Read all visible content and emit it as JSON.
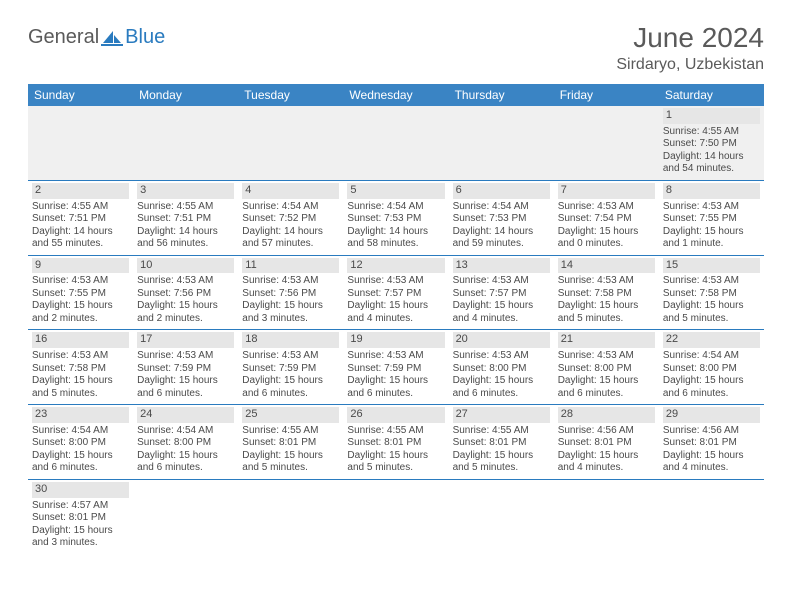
{
  "logo": {
    "text_gray": "General",
    "text_blue": "Blue"
  },
  "title": "June 2024",
  "location": "Sirdaryo, Uzbekistan",
  "colors": {
    "header_bg": "#3a84c4",
    "header_text": "#ffffff",
    "border": "#2a7bbf",
    "daynum_bg": "#e6e6e6",
    "text": "#4a4a4a",
    "title_text": "#5a5a5a",
    "page_bg": "#ffffff"
  },
  "days_of_week": [
    "Sunday",
    "Monday",
    "Tuesday",
    "Wednesday",
    "Thursday",
    "Friday",
    "Saturday"
  ],
  "weeks": [
    [
      null,
      null,
      null,
      null,
      null,
      null,
      {
        "n": "1",
        "sr": "Sunrise: 4:55 AM",
        "ss": "Sunset: 7:50 PM",
        "dl": "Daylight: 14 hours and 54 minutes."
      }
    ],
    [
      {
        "n": "2",
        "sr": "Sunrise: 4:55 AM",
        "ss": "Sunset: 7:51 PM",
        "dl": "Daylight: 14 hours and 55 minutes."
      },
      {
        "n": "3",
        "sr": "Sunrise: 4:55 AM",
        "ss": "Sunset: 7:51 PM",
        "dl": "Daylight: 14 hours and 56 minutes."
      },
      {
        "n": "4",
        "sr": "Sunrise: 4:54 AM",
        "ss": "Sunset: 7:52 PM",
        "dl": "Daylight: 14 hours and 57 minutes."
      },
      {
        "n": "5",
        "sr": "Sunrise: 4:54 AM",
        "ss": "Sunset: 7:53 PM",
        "dl": "Daylight: 14 hours and 58 minutes."
      },
      {
        "n": "6",
        "sr": "Sunrise: 4:54 AM",
        "ss": "Sunset: 7:53 PM",
        "dl": "Daylight: 14 hours and 59 minutes."
      },
      {
        "n": "7",
        "sr": "Sunrise: 4:53 AM",
        "ss": "Sunset: 7:54 PM",
        "dl": "Daylight: 15 hours and 0 minutes."
      },
      {
        "n": "8",
        "sr": "Sunrise: 4:53 AM",
        "ss": "Sunset: 7:55 PM",
        "dl": "Daylight: 15 hours and 1 minute."
      }
    ],
    [
      {
        "n": "9",
        "sr": "Sunrise: 4:53 AM",
        "ss": "Sunset: 7:55 PM",
        "dl": "Daylight: 15 hours and 2 minutes."
      },
      {
        "n": "10",
        "sr": "Sunrise: 4:53 AM",
        "ss": "Sunset: 7:56 PM",
        "dl": "Daylight: 15 hours and 2 minutes."
      },
      {
        "n": "11",
        "sr": "Sunrise: 4:53 AM",
        "ss": "Sunset: 7:56 PM",
        "dl": "Daylight: 15 hours and 3 minutes."
      },
      {
        "n": "12",
        "sr": "Sunrise: 4:53 AM",
        "ss": "Sunset: 7:57 PM",
        "dl": "Daylight: 15 hours and 4 minutes."
      },
      {
        "n": "13",
        "sr": "Sunrise: 4:53 AM",
        "ss": "Sunset: 7:57 PM",
        "dl": "Daylight: 15 hours and 4 minutes."
      },
      {
        "n": "14",
        "sr": "Sunrise: 4:53 AM",
        "ss": "Sunset: 7:58 PM",
        "dl": "Daylight: 15 hours and 5 minutes."
      },
      {
        "n": "15",
        "sr": "Sunrise: 4:53 AM",
        "ss": "Sunset: 7:58 PM",
        "dl": "Daylight: 15 hours and 5 minutes."
      }
    ],
    [
      {
        "n": "16",
        "sr": "Sunrise: 4:53 AM",
        "ss": "Sunset: 7:58 PM",
        "dl": "Daylight: 15 hours and 5 minutes."
      },
      {
        "n": "17",
        "sr": "Sunrise: 4:53 AM",
        "ss": "Sunset: 7:59 PM",
        "dl": "Daylight: 15 hours and 6 minutes."
      },
      {
        "n": "18",
        "sr": "Sunrise: 4:53 AM",
        "ss": "Sunset: 7:59 PM",
        "dl": "Daylight: 15 hours and 6 minutes."
      },
      {
        "n": "19",
        "sr": "Sunrise: 4:53 AM",
        "ss": "Sunset: 7:59 PM",
        "dl": "Daylight: 15 hours and 6 minutes."
      },
      {
        "n": "20",
        "sr": "Sunrise: 4:53 AM",
        "ss": "Sunset: 8:00 PM",
        "dl": "Daylight: 15 hours and 6 minutes."
      },
      {
        "n": "21",
        "sr": "Sunrise: 4:53 AM",
        "ss": "Sunset: 8:00 PM",
        "dl": "Daylight: 15 hours and 6 minutes."
      },
      {
        "n": "22",
        "sr": "Sunrise: 4:54 AM",
        "ss": "Sunset: 8:00 PM",
        "dl": "Daylight: 15 hours and 6 minutes."
      }
    ],
    [
      {
        "n": "23",
        "sr": "Sunrise: 4:54 AM",
        "ss": "Sunset: 8:00 PM",
        "dl": "Daylight: 15 hours and 6 minutes."
      },
      {
        "n": "24",
        "sr": "Sunrise: 4:54 AM",
        "ss": "Sunset: 8:00 PM",
        "dl": "Daylight: 15 hours and 6 minutes."
      },
      {
        "n": "25",
        "sr": "Sunrise: 4:55 AM",
        "ss": "Sunset: 8:01 PM",
        "dl": "Daylight: 15 hours and 5 minutes."
      },
      {
        "n": "26",
        "sr": "Sunrise: 4:55 AM",
        "ss": "Sunset: 8:01 PM",
        "dl": "Daylight: 15 hours and 5 minutes."
      },
      {
        "n": "27",
        "sr": "Sunrise: 4:55 AM",
        "ss": "Sunset: 8:01 PM",
        "dl": "Daylight: 15 hours and 5 minutes."
      },
      {
        "n": "28",
        "sr": "Sunrise: 4:56 AM",
        "ss": "Sunset: 8:01 PM",
        "dl": "Daylight: 15 hours and 4 minutes."
      },
      {
        "n": "29",
        "sr": "Sunrise: 4:56 AM",
        "ss": "Sunset: 8:01 PM",
        "dl": "Daylight: 15 hours and 4 minutes."
      }
    ],
    [
      {
        "n": "30",
        "sr": "Sunrise: 4:57 AM",
        "ss": "Sunset: 8:01 PM",
        "dl": "Daylight: 15 hours and 3 minutes."
      },
      null,
      null,
      null,
      null,
      null,
      null
    ]
  ]
}
